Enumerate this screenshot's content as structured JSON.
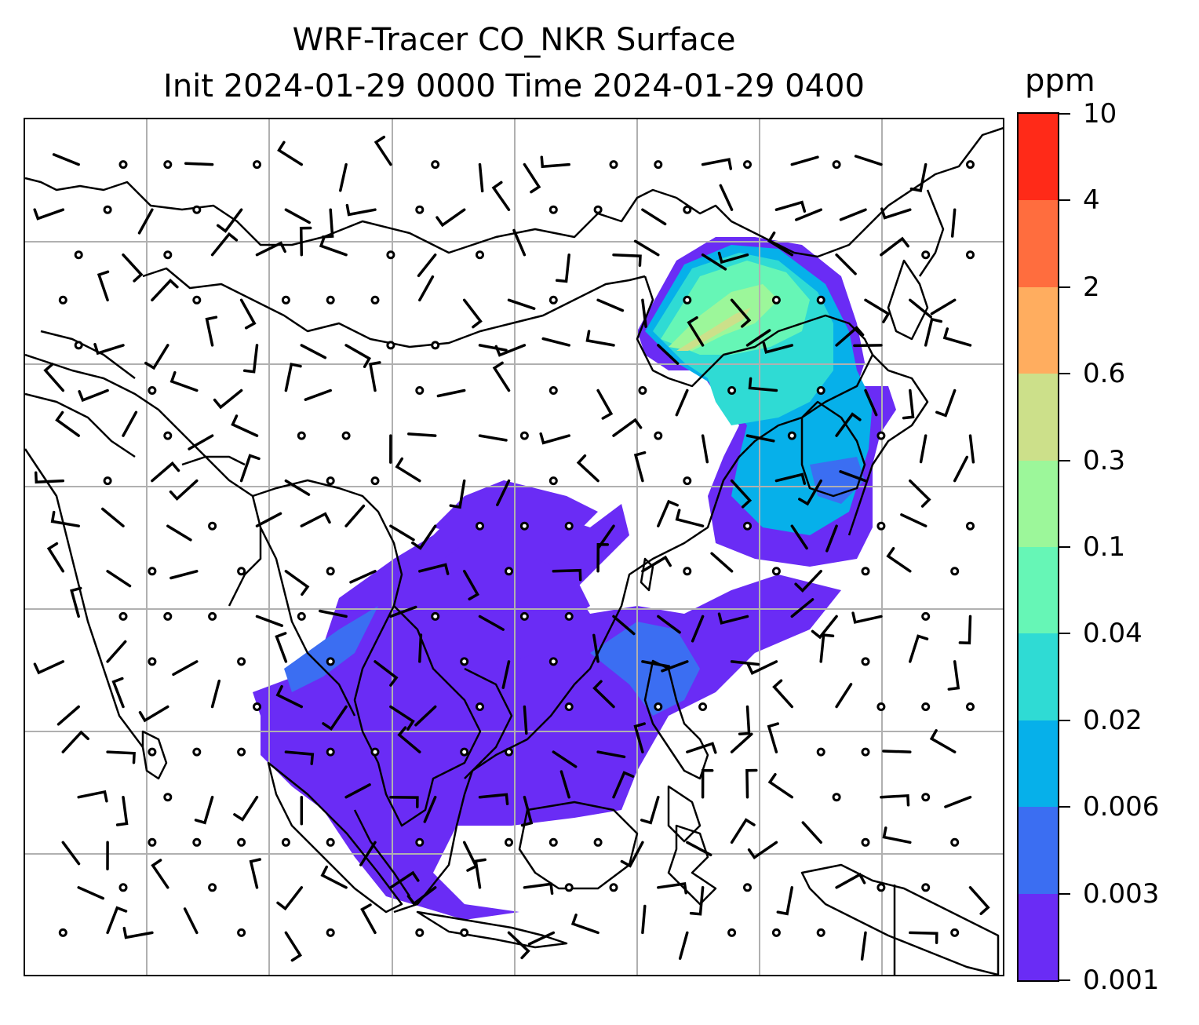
{
  "title": {
    "line1": "WRF-Tracer CO_NKR Surface",
    "line2": "Init 2024-01-29 0000 Time 2024-01-29 0400"
  },
  "colorbar": {
    "unit": "ppm",
    "ticks": [
      "0.001",
      "0.003",
      "0.006",
      "0.02",
      "0.04",
      "0.1",
      "0.3",
      "0.6",
      "2",
      "4",
      "10"
    ],
    "colors": [
      "#6a2cf5",
      "#3b6ef2",
      "#06b0ea",
      "#2fdbd4",
      "#66f6b6",
      "#9cf79a",
      "#cce08a",
      "#ffad5f",
      "#ff6d3e",
      "#ff2a18"
    ]
  },
  "map": {
    "gridlines": true,
    "field_colors": {
      "lowest": "#6a2cf5",
      "low": "#3b6ef2",
      "mid_low": "#06b0ea",
      "mid": "#2fdbd4",
      "mid_high": "#66f6b6",
      "high": "#9cf79a",
      "higher": "#cce08a",
      "peak": "#ffad5f"
    },
    "coastline_color": "#000000",
    "grid_color": "#b0b0b0",
    "wind_barb_color": "#000000"
  }
}
